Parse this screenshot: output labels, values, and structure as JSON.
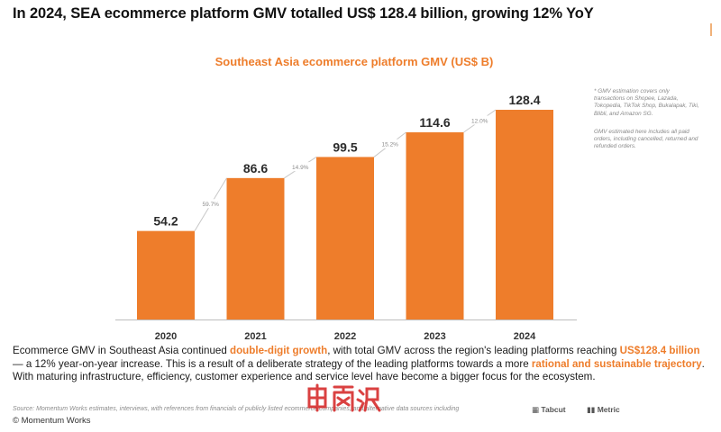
{
  "headline": "In 2024, SEA ecommerce platform GMV totalled US$ 128.4 billion, growing 12% YoY",
  "chart_data": {
    "type": "bar",
    "title": "Southeast Asia ecommerce platform GMV (US$ B)",
    "categories": [
      "2020",
      "2021",
      "2022",
      "2023",
      "2024"
    ],
    "values": [
      54.2,
      86.6,
      99.5,
      114.6,
      128.4
    ],
    "value_labels": [
      "54.2",
      "86.6",
      "99.5",
      "114.6",
      "128.4"
    ],
    "growth_labels": [
      "59.7%",
      "14.9%",
      "15.2%",
      "12.0%"
    ],
    "ylim": [
      0,
      135
    ],
    "grid": false,
    "xlabel": "",
    "ylabel": "",
    "bar_color": "#ee7d2b"
  },
  "notes": {
    "note1": "* GMV estimation covers only transactions on Shopee, Lazada, Tokopedia, TikTok Shop, Bukalapak, Tiki, Blibli, and Amazon SG.",
    "note2": "GMV estimated here includes all paid orders, including cancelled, returned and refunded orders."
  },
  "body": {
    "p1": "Ecommerce GMV in Southeast Asia continued ",
    "h1": "double-digit growth",
    "p2": ", with total GMV across the region's leading platforms reaching ",
    "h2": "US$128.4 billion",
    "p3": " — a 12% year-on-year increase. This is a result of a deliberate strategy of the leading platforms towards a more ",
    "h3": "rational and sustainable trajectory",
    "p4": ". With maturing infrastructure, efficiency, customer experience and service level have become a bigger focus for the ecosystem."
  },
  "source_text": "Source: Momentum Works estimates, interviews, with references from financials of publicly listed ecommerce companies, and alternative data sources including",
  "brand_tabcut": "Tabcut",
  "brand_metric": "Metric",
  "copyright": "© Momentum Works",
  "colors": {
    "accent": "#ee7d2b",
    "watermark": "#d42020"
  }
}
